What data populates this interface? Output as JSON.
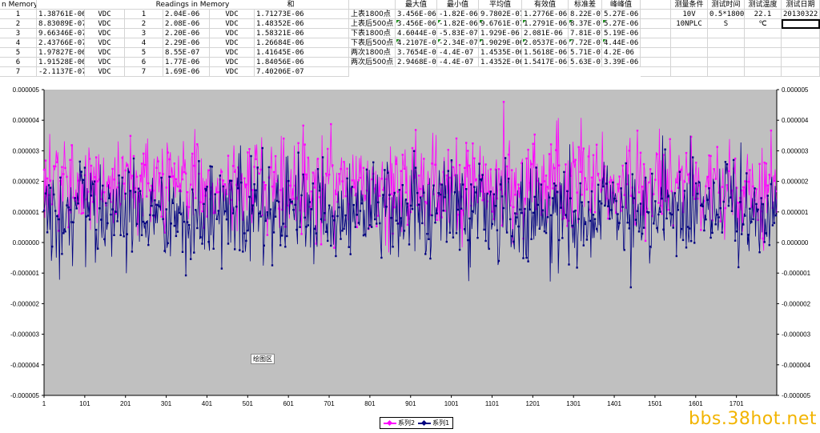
{
  "sheet": {
    "col_a_header": "n Memory",
    "col_b_header": "Readings in Memory",
    "col_sum_header": "和",
    "rows": [
      {
        "n": "1",
        "v1": "1.38761E-06",
        "u1": "VDC",
        "n2": "1",
        "v2": "2.04E-06",
        "u2": "VDC",
        "sum": "1.71273E-06"
      },
      {
        "n": "2",
        "v1": "8.83089E-07",
        "u1": "VDC",
        "n2": "2",
        "v2": "2.08E-06",
        "u2": "VDC",
        "sum": "1.48352E-06"
      },
      {
        "n": "3",
        "v1": "9.66346E-07",
        "u1": "VDC",
        "n2": "3",
        "v2": "2.20E-06",
        "u2": "VDC",
        "sum": "1.58321E-06"
      },
      {
        "n": "4",
        "v1": "2.43766E-07",
        "u1": "VDC",
        "n2": "4",
        "v2": "2.29E-06",
        "u2": "VDC",
        "sum": "1.26684E-06"
      },
      {
        "n": "5",
        "v1": "1.97827E-06",
        "u1": "VDC",
        "n2": "5",
        "v2": "8.55E-07",
        "u2": "VDC",
        "sum": "1.41645E-06"
      },
      {
        "n": "6",
        "v1": "1.91528E-06",
        "u1": "VDC",
        "n2": "6",
        "v2": "1.77E-06",
        "u2": "VDC",
        "sum": "1.84056E-06"
      },
      {
        "n": "7",
        "v1": "-2.1137E-07",
        "u1": "VDC",
        "n2": "7",
        "v2": "1.69E-06",
        "u2": "VDC",
        "sum": "7.40206E-07"
      }
    ],
    "stats_headers": [
      "最大值",
      "最小值",
      "平均值",
      "有效值",
      "标准差",
      "峰峰值"
    ],
    "stats_rows": [
      {
        "label": "上表1800点",
        "max": "3.456E-06",
        "min": "-1.82E-06",
        "avg": "9.7802E-07",
        "rms": "1.2776E-06",
        "std": "8.22E-07",
        "pp": "5.27E-06"
      },
      {
        "label": "上表后500点",
        "max": "3.456E-06",
        "min": "-1.82E-06",
        "avg": "9.6761E-07",
        "rms": "1.2791E-06",
        "std": "8.37E-07",
        "pp": "5.27E-06"
      },
      {
        "label": "下表1800点",
        "max": "4.6044E-06",
        "min": "-5.83E-07",
        "avg": "1.929E-06",
        "rms": "2.081E-06",
        "std": "7.81E-07",
        "pp": "5.19E-06"
      },
      {
        "label": "下表后500点",
        "max": "4.2107E-06",
        "min": "-2.34E-07",
        "avg": "1.9029E-06",
        "rms": "2.0537E-06",
        "std": "7.72E-07",
        "pp": "4.44E-06"
      },
      {
        "label": "两次1800点",
        "max": "3.7654E-06",
        "min": "-4.4E-07",
        "avg": "1.4535E-06",
        "rms": "1.5618E-06",
        "std": "5.71E-07",
        "pp": "4.2E-06"
      },
      {
        "label": "两次后500点",
        "max": "2.9468E-06",
        "min": "-4.4E-07",
        "avg": "1.4352E-06",
        "rms": "1.5417E-06",
        "std": "5.63E-07",
        "pp": "3.39E-06"
      }
    ],
    "cond_headers": [
      "测量条件",
      "测试时间",
      "测试温度",
      "测试日期"
    ],
    "cond_row1": [
      "10V",
      "0.5*1800",
      "22.1",
      "20130322"
    ],
    "cond_row2": [
      "10NPLC",
      "S",
      "℃",
      ""
    ]
  },
  "chart_data": {
    "type": "line",
    "x_ticks": [
      "1",
      "101",
      "201",
      "301",
      "401",
      "501",
      "601",
      "701",
      "801",
      "901",
      "1001",
      "1101",
      "1201",
      "1301",
      "1401",
      "1501",
      "1601",
      "1701"
    ],
    "y_ticks_left": [
      "0.000005",
      "0.000004",
      "0.000003",
      "0.000002",
      "0.000001",
      "0.000000",
      "-0.000001",
      "-0.000002",
      "-0.000003",
      "-0.000004",
      "-0.000005"
    ],
    "y_ticks_right": [
      "0.000005",
      "0.000004",
      "0.000003",
      "0.000002",
      "0.000001",
      "0.000000",
      "-0.000001",
      "-0.000002",
      "-0.000003",
      "-0.000004",
      "-0.000005"
    ],
    "ylim": [
      -5e-06,
      5e-06
    ],
    "xlim": [
      1,
      1800
    ],
    "grid": false,
    "legend": "bottom",
    "series": [
      {
        "name": "系列2",
        "color": "#ff00ff",
        "mean": 1.9e-06,
        "std": 7.8e-07,
        "min": -5.8e-07,
        "max": 4.6e-06
      },
      {
        "name": "系列1",
        "color": "#000080",
        "mean": 9.8e-07,
        "std": 8.2e-07,
        "min": -1.82e-06,
        "max": 3.5e-06
      }
    ],
    "plot_area_label": "绘图区",
    "plot_bg": "#c0c0c0"
  },
  "watermark": "bbs.38hot.net"
}
